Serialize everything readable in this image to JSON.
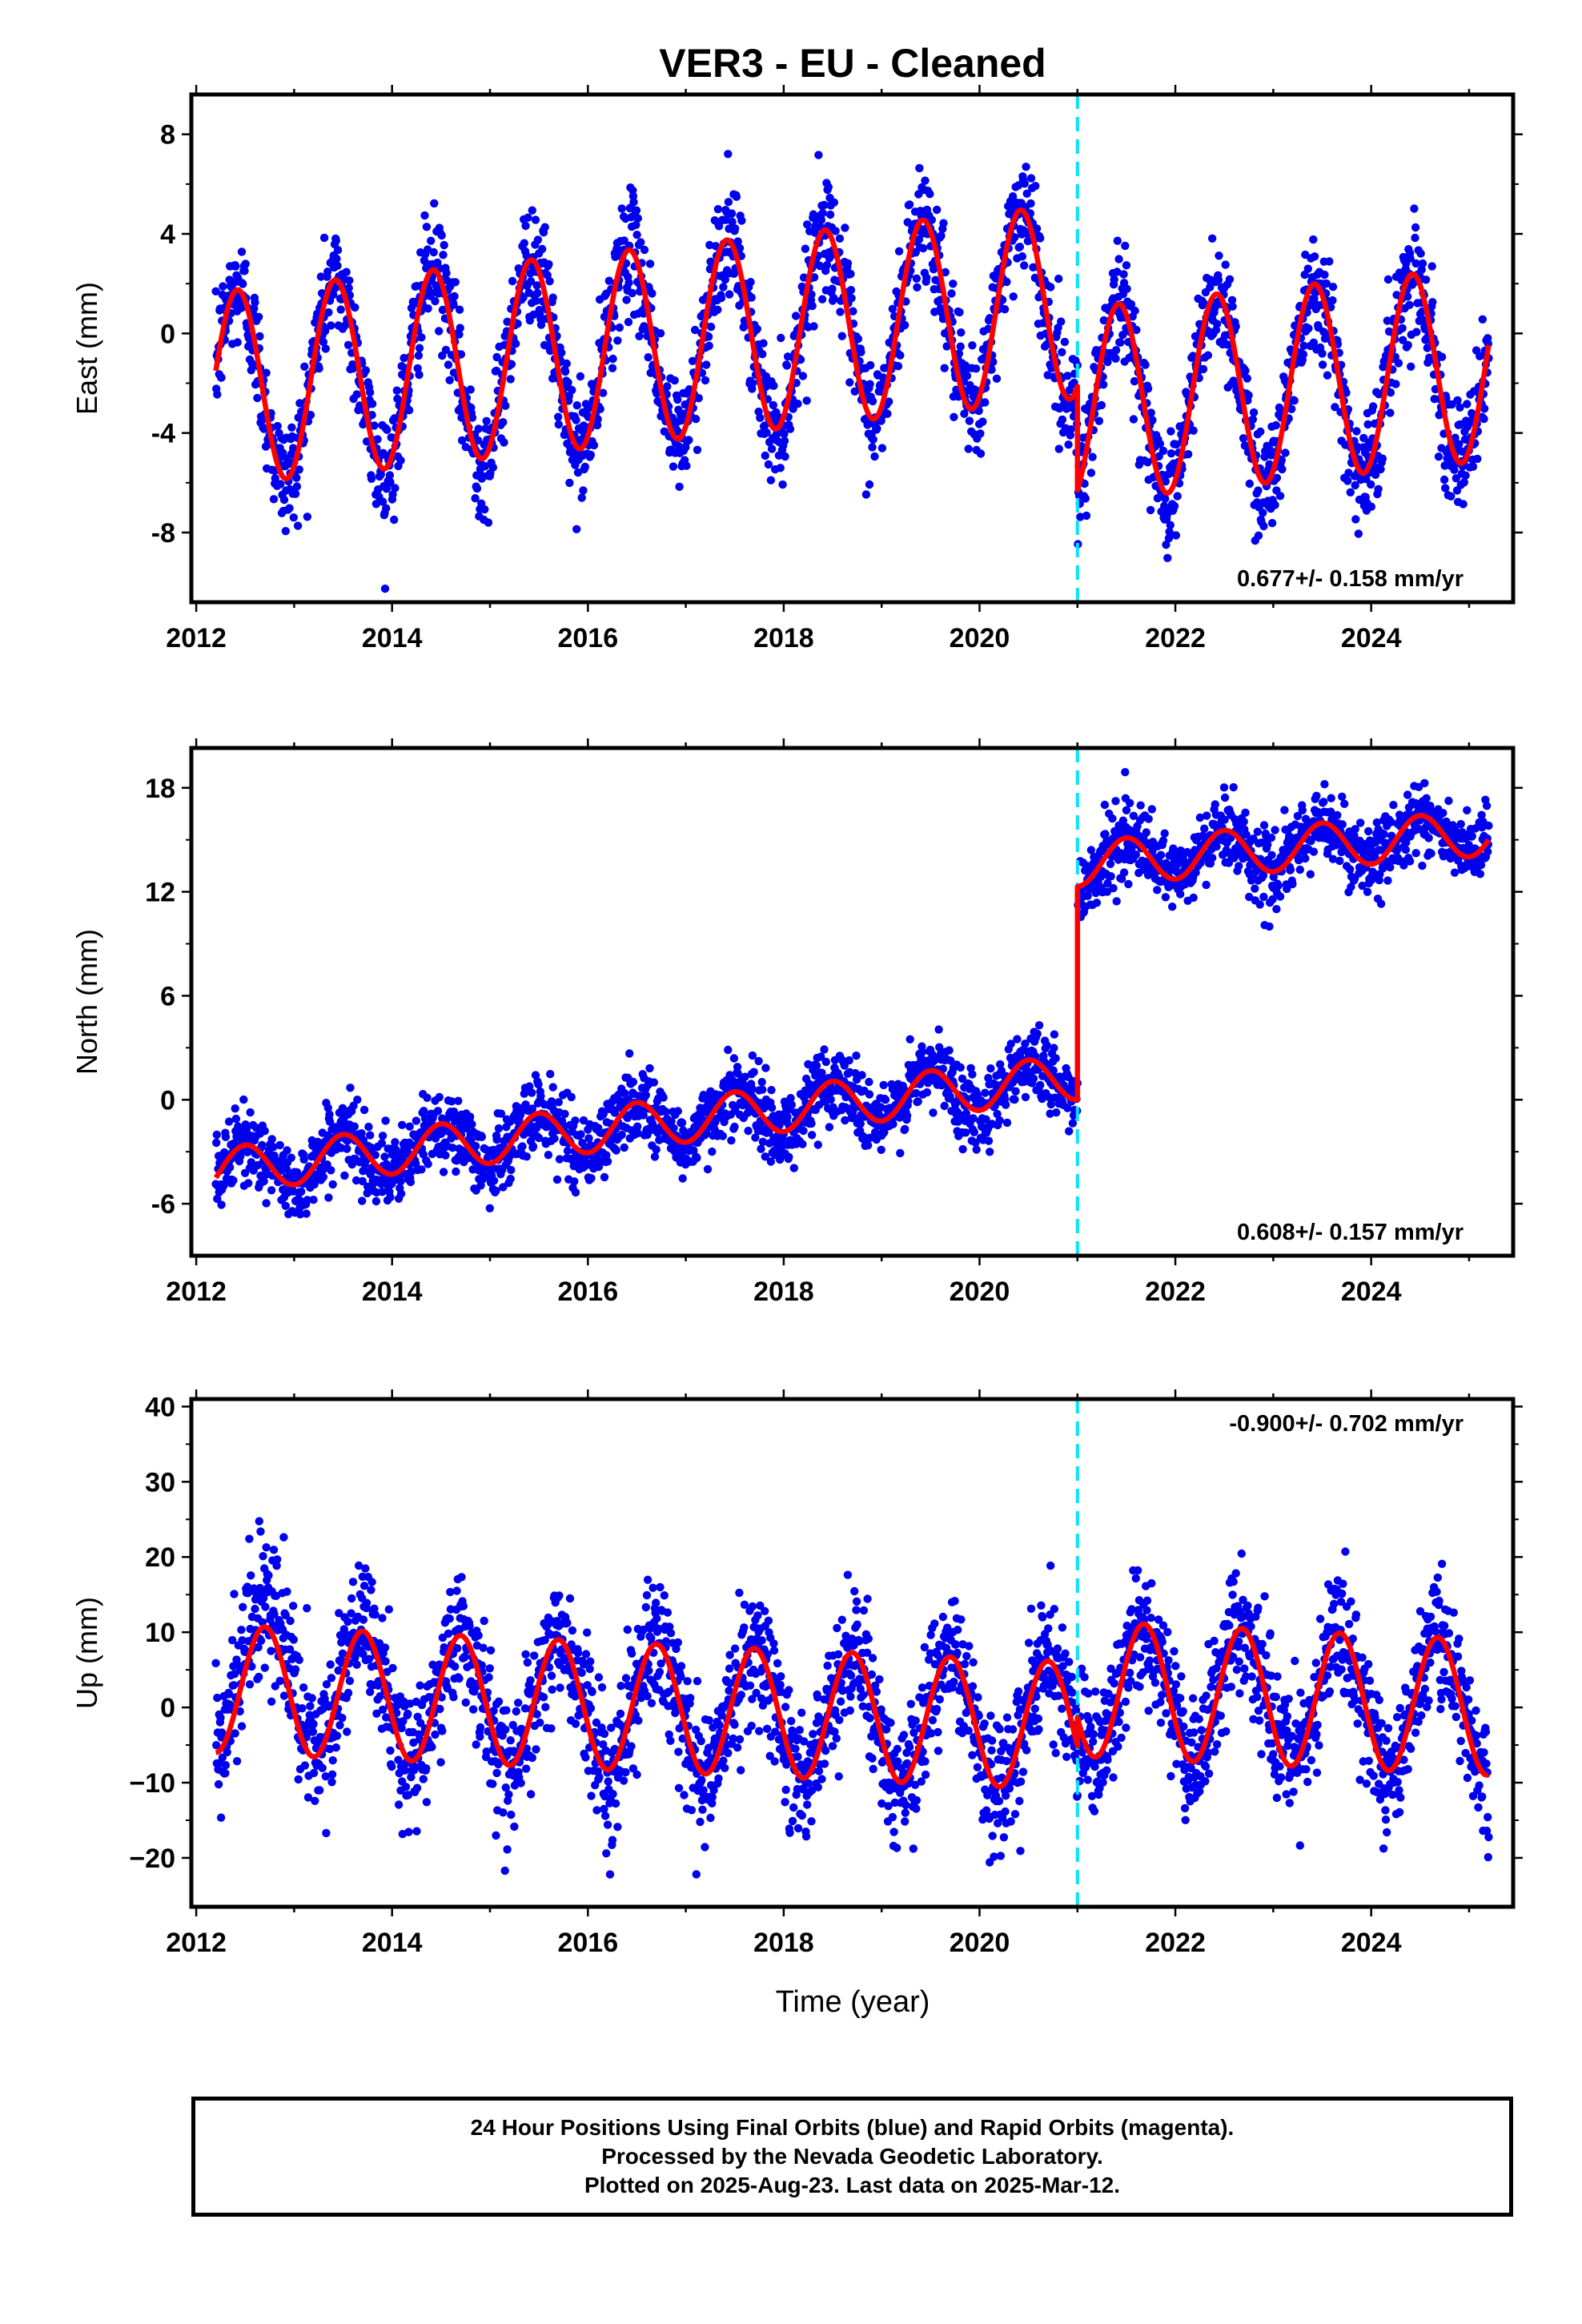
{
  "title": "VER3  - EU - Cleaned",
  "xlabel": "Time (year)",
  "colors": {
    "points": "#0000ee",
    "fit": "#ff0000",
    "offset_line": "#00e5ff",
    "frame": "#000000"
  },
  "chart_data": [
    {
      "type": "scatter",
      "ylabel": "East (mm)",
      "xlim": [
        2011.95,
        2025.45
      ],
      "ylim": [
        -10.8,
        9.6
      ],
      "xticks": [
        2012,
        2014,
        2016,
        2018,
        2020,
        2022,
        2024
      ],
      "xtick_labels": [
        "2012",
        "2014",
        "2016",
        "2018",
        "2020",
        "2022",
        "2024"
      ],
      "yticks": [
        -8,
        -4,
        0,
        4,
        8
      ],
      "ytick_labels": [
        "-8",
        "-4",
        "0",
        "4",
        "8"
      ],
      "rate_label": "0.677+/- 0.158 mm/yr",
      "rate_label_position": "bottom-right",
      "offset_epoch": 2021.0,
      "series": [
        {
          "role": "points",
          "x_range": [
            2012.2,
            2025.2
          ]
        },
        {
          "role": "fit",
          "segments": [
            {
              "x_range": [
                2012.2,
                2021.0
              ],
              "value_at_start": -1.5,
              "mean_trend_per_yr": 0.4,
              "annual_amplitude": 3.9,
              "annual_peak_epoch": 2012.42
            },
            {
              "x_range": [
                2021.0,
                2025.2
              ],
              "value_at_start": -6.3,
              "mean_trend_per_yr": 0.4,
              "annual_amplitude": 3.9,
              "annual_peak_epoch": 2021.42
            }
          ]
        }
      ]
    },
    {
      "type": "scatter",
      "ylabel": "North (mm)",
      "xlim": [
        2011.95,
        2025.45
      ],
      "ylim": [
        -9.0,
        20.3
      ],
      "xticks": [
        2012,
        2014,
        2016,
        2018,
        2020,
        2022,
        2024
      ],
      "xtick_labels": [
        "2012",
        "2014",
        "2016",
        "2018",
        "2020",
        "2022",
        "2024"
      ],
      "yticks": [
        -6,
        0,
        6,
        12,
        18
      ],
      "ytick_labels": [
        "-6",
        "0",
        "6",
        "12",
        "18"
      ],
      "rate_label": "0.608+/- 0.157 mm/yr",
      "rate_label_position": "bottom-right",
      "offset_epoch": 2021.0,
      "series": [
        {
          "role": "points",
          "x_range": [
            2012.2,
            2025.2
          ]
        },
        {
          "role": "fit",
          "segments": [
            {
              "x_range": [
                2012.2,
                2021.0
              ],
              "value_at_start": -4.5,
              "value_at_end": 0.0,
              "annual_amplitude": 1.3,
              "annual_peak_epoch": 2012.5
            },
            {
              "x_range": [
                2021.0,
                2025.2
              ],
              "value_at_start": 12.3,
              "value_at_end": 15.0,
              "annual_amplitude": 1.3,
              "annual_peak_epoch": 2021.5
            }
          ]
        }
      ]
    },
    {
      "type": "scatter",
      "ylabel": "Up (mm)",
      "xlim": [
        2011.95,
        2025.45
      ],
      "ylim": [
        -26.5,
        41.0
      ],
      "xticks": [
        2012,
        2014,
        2016,
        2018,
        2020,
        2022,
        2024
      ],
      "xtick_labels": [
        "2012",
        "2014",
        "2016",
        "2018",
        "2020",
        "2022",
        "2024"
      ],
      "yticks": [
        -20,
        -10,
        0,
        10,
        20,
        30,
        40
      ],
      "ytick_labels": [
        "−20",
        "−10",
        "0",
        "10",
        "20",
        "30",
        "40"
      ],
      "rate_label": "-0.900+/- 0.702 mm/yr",
      "rate_label_position": "top-right",
      "offset_epoch": 2021.0,
      "series": [
        {
          "role": "points",
          "x_range": [
            2012.2,
            2025.2
          ]
        },
        {
          "role": "fit",
          "segments": [
            {
              "x_range": [
                2012.2,
                2021.0
              ],
              "mean_start": 2.5,
              "mean_end": -2.5,
              "annual_amplitude": 8.5,
              "annual_peak_epoch": 2012.7
            },
            {
              "x_range": [
                2021.0,
                2025.2
              ],
              "mean_start": 2.5,
              "mean_end": 0.0,
              "annual_amplitude": 9.0,
              "annual_peak_epoch": 2021.68
            }
          ]
        }
      ]
    }
  ],
  "caption": {
    "line1": "24 Hour Positions Using Final Orbits (blue) and Rapid Orbits (magenta).",
    "line2": "Processed by the Nevada Geodetic Laboratory.",
    "line3": "Plotted on 2025-Aug-23. Last data on 2025-Mar-12."
  }
}
